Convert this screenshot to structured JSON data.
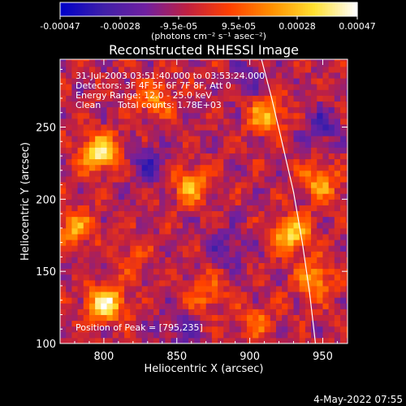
{
  "chart_data": {
    "type": "heatmap",
    "title": "Reconstructed RHESSI Image",
    "xlabel": "Heliocentric X (arcsec)",
    "ylabel": "Heliocentric Y (arcsec)",
    "xlim": [
      770,
      967
    ],
    "ylim": [
      100,
      297
    ],
    "x_ticks": [
      800,
      850,
      900,
      950
    ],
    "y_ticks": [
      100,
      150,
      200,
      250
    ],
    "colorbar": {
      "range": [
        -0.00047,
        0.00047
      ],
      "tick_values": [
        -0.00047,
        -0.00028,
        -9.5e-05,
        9.5e-05,
        0.00028,
        0.00047
      ],
      "tick_labels": [
        "-0.00047",
        "-0.00028",
        "-9.5e-05",
        "9.5e-05",
        "0.00028",
        "0.00047"
      ],
      "unit_label": "(photons cm⁻² s⁻¹ asec⁻²)",
      "colors": [
        "#0000c8",
        "#4020a8",
        "#7020a0",
        "#c02040",
        "#ff4000",
        "#ff9000",
        "#ffe030",
        "#ffffff"
      ]
    },
    "annotations": {
      "time_range": "31-Jul-2003 03:51:40.000 to 03:53:24.000",
      "detectors": "Detectors: 3F 4F 5F 6F 7F 8F, Att 0",
      "energy": "Energy Range: 12.0 - 25.0 keV",
      "method": "Clean",
      "counts": "Total counts: 1.78E+03",
      "peak": "Position of Peak = [795,235]"
    },
    "peak_position": [
      795,
      235
    ],
    "limb": [
      [
        908,
        297
      ],
      [
        915,
        270
      ],
      [
        922,
        240
      ],
      [
        930,
        205
      ],
      [
        936,
        170
      ],
      [
        941,
        135
      ],
      [
        945,
        100
      ]
    ],
    "bright_regions": [
      {
        "x": 797,
        "y": 233,
        "value": 0.00047
      },
      {
        "x": 801,
        "y": 128,
        "value": 0.00047
      },
      {
        "x": 929,
        "y": 176,
        "value": 0.0004
      },
      {
        "x": 860,
        "y": 210,
        "value": 0.0003
      },
      {
        "x": 912,
        "y": 258,
        "value": 0.00032
      },
      {
        "x": 948,
        "y": 212,
        "value": 0.00028
      },
      {
        "x": 835,
        "y": 270,
        "value": 0.00025
      },
      {
        "x": 780,
        "y": 180,
        "value": 0.00028
      },
      {
        "x": 870,
        "y": 135,
        "value": 0.0002
      },
      {
        "x": 945,
        "y": 145,
        "value": 0.0003
      },
      {
        "x": 905,
        "y": 115,
        "value": 0.00018
      },
      {
        "x": 820,
        "y": 160,
        "value": 0.00012
      }
    ],
    "dim_regions": [
      {
        "x": 830,
        "y": 225,
        "value": -0.0002
      },
      {
        "x": 885,
        "y": 165,
        "value": -0.00018
      },
      {
        "x": 850,
        "y": 110,
        "value": -0.00015
      },
      {
        "x": 950,
        "y": 250,
        "value": -0.0002
      },
      {
        "x": 900,
        "y": 285,
        "value": -0.00015
      }
    ]
  },
  "timestamp": "4-May-2022 07:55"
}
